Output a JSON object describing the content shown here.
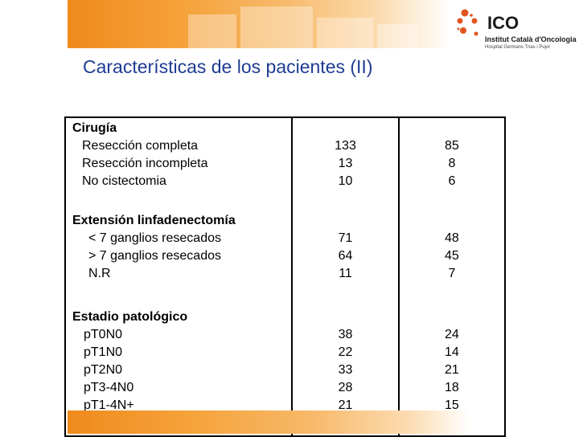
{
  "title": "Características de los pacientes (II)",
  "logo": {
    "brand": "ICO",
    "subtitle": "Institut Català d'Oncologia",
    "tagline": "Hospital Germans Trias i Pujol"
  },
  "table": {
    "groups": [
      {
        "header": "Cirugía",
        "rows": [
          {
            "label": "Resección completa",
            "col1": "133",
            "col2": "85"
          },
          {
            "label": "Resección incompleta",
            "col1": "13",
            "col2": "8"
          },
          {
            "label": "No cistectomia",
            "col1": "10",
            "col2": "6"
          }
        ]
      },
      {
        "header": "Extensión linfadenectomía",
        "rows": [
          {
            "label": "< 7 ganglios resecados",
            "col1": "71",
            "col2": "48"
          },
          {
            "label": "> 7 ganglios resecados",
            "col1": "64",
            "col2": "45"
          },
          {
            "label": "N.R",
            "col1": "11",
            "col2": "7"
          }
        ]
      },
      {
        "header": "Estadio patológico",
        "rows": [
          {
            "label": "pT0N0",
            "col1": "38",
            "col2": "24"
          },
          {
            "label": "pT1N0",
            "col1": "22",
            "col2": "14"
          },
          {
            "label": "pT2N0",
            "col1": "33",
            "col2": "21"
          },
          {
            "label": "pT3-4N0",
            "col1": "28",
            "col2": "18"
          },
          {
            "label": "pT1-4N+",
            "col1": "21",
            "col2": "15"
          }
        ]
      }
    ]
  },
  "colors": {
    "title": "#1f3c93",
    "banner": "#f08a1c",
    "logo_dots": "#e2541f"
  }
}
